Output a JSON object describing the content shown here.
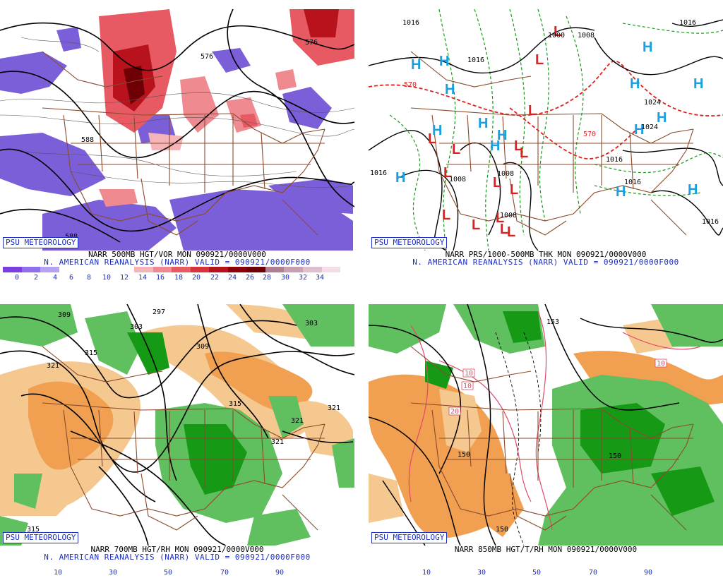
{
  "panels": [
    {
      "badge": "PSU METEOROLOGY",
      "line1": "NARR 500MB HGT/VOR MON 090921/0000V000",
      "line2": "N. AMERICAN REANALYSIS (NARR) VALID = 090921/0000F000",
      "contour_labels": [
        "576",
        "588",
        "588",
        "576"
      ],
      "colorbar": {
        "ticks": [
          "0",
          "2",
          "4",
          "6",
          "8",
          "10",
          "12",
          "14",
          "16",
          "18",
          "20",
          "22",
          "24",
          "26",
          "28",
          "30",
          "32",
          "34"
        ],
        "colors": [
          "#7b3fe0",
          "#9070ea",
          "#b6a3f2",
          "#ffffff",
          "#ffffff",
          "#ffffff",
          "#ffffff",
          "#f5b4b8",
          "#ef8a90",
          "#e85a63",
          "#d8333d",
          "#b8121c",
          "#8a0009",
          "#6e0005",
          "#b08090",
          "#c9a0b0",
          "#e0c0d0",
          "#f5dde8"
        ]
      }
    },
    {
      "badge": "PSU METEOROLOGY",
      "line1": "NARR PRS/1000-500MB THK MON 090921/0000V000",
      "line2": "N. AMERICAN REANALYSIS (NARR) VALID = 090921/0000F000",
      "contour_labels": [
        "1016",
        "1000",
        "1008",
        "570",
        "570",
        "1016",
        "1008",
        "1008",
        "1008",
        "1016",
        "1016",
        "1016",
        "1016",
        "1024",
        "1024",
        "1016"
      ],
      "colors": {
        "high": "#1aa0e0",
        "low": "#e02020"
      }
    },
    {
      "badge": "PSU METEOROLOGY",
      "line1": "NARR 700MB HGT/RH MON 090921/0000V000",
      "line2": "N. AMERICAN REANALYSIS (NARR) VALID = 090921/0000F000",
      "contour_labels": [
        "309",
        "297",
        "303",
        "315",
        "321",
        "309",
        "303",
        "315",
        "321",
        "321",
        "321",
        "315"
      ],
      "colorbar": {
        "ticks": [
          "10",
          "30",
          "50",
          "70",
          "90"
        ],
        "colors": [
          "#f0a050",
          "#f5c890",
          "#ffffff",
          "#ffffff",
          "#60c060",
          "#169a16"
        ]
      }
    },
    {
      "badge": "PSU METEOROLOGY",
      "line1": "NARR 850MB HGT/T/RH MON 090921/0000V000",
      "line2": "",
      "contour_labels": [
        "153",
        "10",
        "20",
        "10",
        "150",
        "150",
        "150",
        "10"
      ],
      "colorbar": {
        "ticks": [
          "10",
          "30",
          "50",
          "70",
          "90"
        ],
        "colors": [
          "#f0a050",
          "#f5c890",
          "#ffffff",
          "#ffffff",
          "#60c060",
          "#169a16"
        ]
      }
    }
  ]
}
